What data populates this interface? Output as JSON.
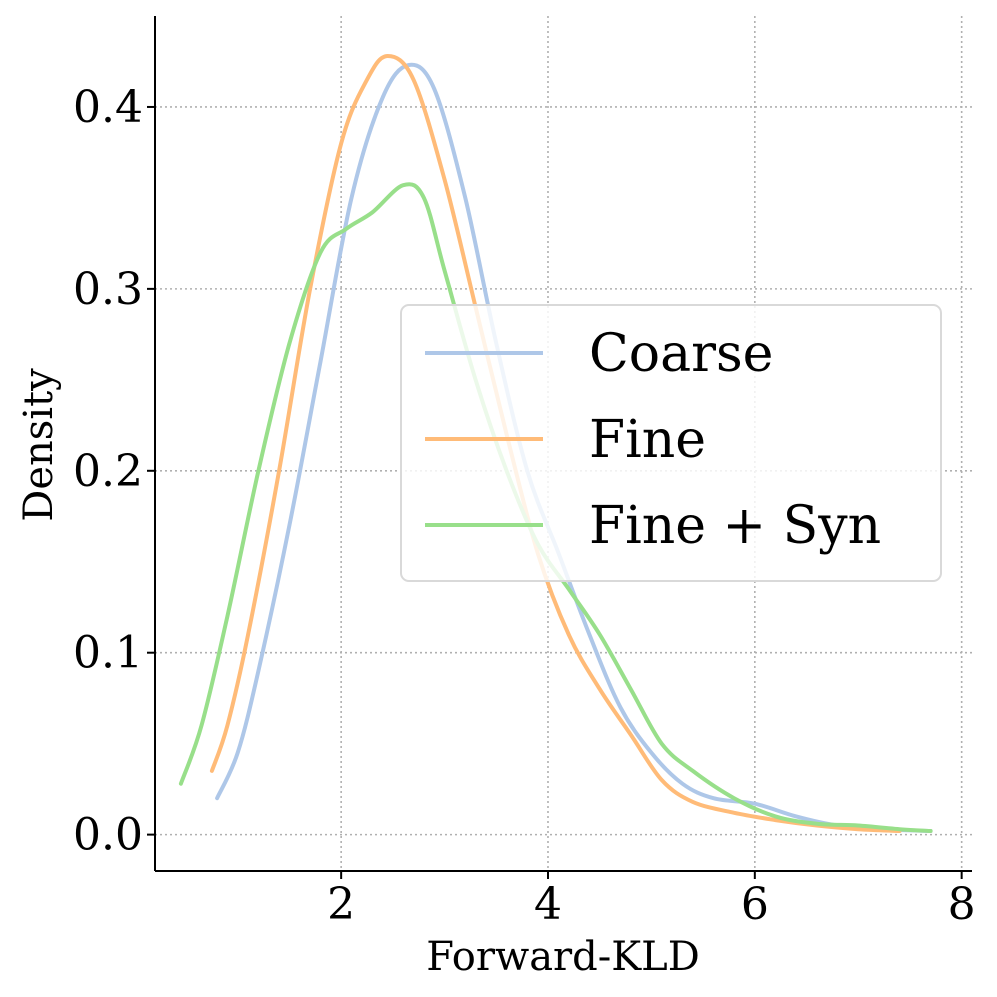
{
  "chart_data": {
    "type": "line",
    "xlabel": "Forward-KLD",
    "ylabel": "Density",
    "xlim": [
      0.2,
      8.1
    ],
    "ylim": [
      -0.02,
      0.45
    ],
    "xticks": [
      2,
      4,
      6,
      8
    ],
    "xtick_labels": [
      "2",
      "4",
      "6",
      "8"
    ],
    "yticks": [
      0.0,
      0.1,
      0.2,
      0.3,
      0.4
    ],
    "ytick_labels": [
      "0.0",
      "0.1",
      "0.2",
      "0.3",
      "0.4"
    ],
    "grid": true,
    "legend_position": "center-right",
    "series": [
      {
        "name": "Coarse",
        "color": "#aec7e8",
        "points": [
          [
            0.8,
            0.02
          ],
          [
            1.0,
            0.045
          ],
          [
            1.2,
            0.09
          ],
          [
            1.5,
            0.17
          ],
          [
            1.8,
            0.26
          ],
          [
            2.1,
            0.35
          ],
          [
            2.4,
            0.405
          ],
          [
            2.65,
            0.423
          ],
          [
            2.9,
            0.41
          ],
          [
            3.2,
            0.35
          ],
          [
            3.5,
            0.27
          ],
          [
            3.8,
            0.2
          ],
          [
            4.1,
            0.155
          ],
          [
            4.4,
            0.11
          ],
          [
            4.7,
            0.07
          ],
          [
            5.0,
            0.045
          ],
          [
            5.3,
            0.028
          ],
          [
            5.6,
            0.02
          ],
          [
            6.0,
            0.017
          ],
          [
            6.4,
            0.01
          ],
          [
            6.8,
            0.005
          ],
          [
            7.2,
            0.003
          ],
          [
            7.7,
            0.002
          ]
        ]
      },
      {
        "name": "Fine",
        "color": "#ffbb78",
        "points": [
          [
            0.75,
            0.035
          ],
          [
            0.9,
            0.06
          ],
          [
            1.1,
            0.11
          ],
          [
            1.4,
            0.2
          ],
          [
            1.7,
            0.3
          ],
          [
            2.0,
            0.38
          ],
          [
            2.25,
            0.415
          ],
          [
            2.45,
            0.428
          ],
          [
            2.7,
            0.415
          ],
          [
            3.0,
            0.36
          ],
          [
            3.3,
            0.29
          ],
          [
            3.6,
            0.22
          ],
          [
            3.9,
            0.155
          ],
          [
            4.2,
            0.11
          ],
          [
            4.5,
            0.08
          ],
          [
            4.8,
            0.055
          ],
          [
            5.1,
            0.03
          ],
          [
            5.4,
            0.018
          ],
          [
            5.8,
            0.012
          ],
          [
            6.2,
            0.008
          ],
          [
            6.6,
            0.005
          ],
          [
            7.0,
            0.003
          ],
          [
            7.4,
            0.002
          ]
        ]
      },
      {
        "name": "Fine + Syn",
        "color": "#98df8a",
        "points": [
          [
            0.45,
            0.028
          ],
          [
            0.65,
            0.06
          ],
          [
            0.9,
            0.12
          ],
          [
            1.2,
            0.2
          ],
          [
            1.5,
            0.27
          ],
          [
            1.8,
            0.32
          ],
          [
            2.05,
            0.333
          ],
          [
            2.3,
            0.342
          ],
          [
            2.6,
            0.357
          ],
          [
            2.8,
            0.35
          ],
          [
            3.0,
            0.31
          ],
          [
            3.3,
            0.25
          ],
          [
            3.6,
            0.2
          ],
          [
            3.9,
            0.16
          ],
          [
            4.2,
            0.135
          ],
          [
            4.5,
            0.11
          ],
          [
            4.8,
            0.08
          ],
          [
            5.1,
            0.05
          ],
          [
            5.4,
            0.035
          ],
          [
            5.8,
            0.02
          ],
          [
            6.2,
            0.01
          ],
          [
            6.6,
            0.006
          ],
          [
            7.0,
            0.005
          ],
          [
            7.4,
            0.003
          ],
          [
            7.7,
            0.002
          ]
        ]
      }
    ]
  }
}
